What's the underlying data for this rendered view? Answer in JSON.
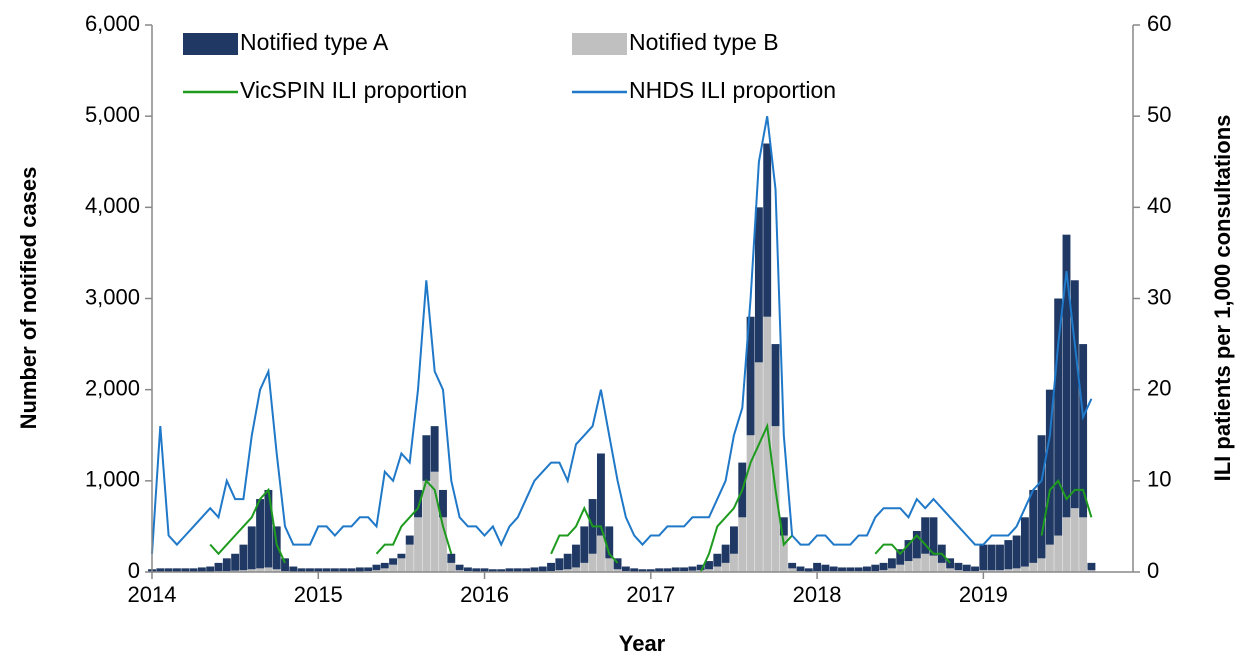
{
  "chart_data": {
    "type": "bar-line",
    "x_label": "Year",
    "y_label": "Number of notified cases",
    "y2_label": "ILI patients per 1,000 consultations",
    "x": [
      2014,
      2014.05,
      2014.1,
      2014.15,
      2014.2,
      2014.25,
      2014.3,
      2014.35,
      2014.4,
      2014.45,
      2014.5,
      2014.55,
      2014.6,
      2014.65,
      2014.7,
      2014.75,
      2014.8,
      2014.85,
      2014.9,
      2014.95,
      2015,
      2015.05,
      2015.1,
      2015.15,
      2015.2,
      2015.25,
      2015.3,
      2015.35,
      2015.4,
      2015.45,
      2015.5,
      2015.55,
      2015.6,
      2015.65,
      2015.7,
      2015.75,
      2015.8,
      2015.85,
      2015.9,
      2015.95,
      2016,
      2016.05,
      2016.1,
      2016.15,
      2016.2,
      2016.25,
      2016.3,
      2016.35,
      2016.4,
      2016.45,
      2016.5,
      2016.55,
      2016.6,
      2016.65,
      2016.7,
      2016.75,
      2016.8,
      2016.85,
      2016.9,
      2016.95,
      2017,
      2017.05,
      2017.1,
      2017.15,
      2017.2,
      2017.25,
      2017.3,
      2017.35,
      2017.4,
      2017.45,
      2017.5,
      2017.55,
      2017.6,
      2017.65,
      2017.7,
      2017.75,
      2017.8,
      2017.85,
      2017.9,
      2017.95,
      2018,
      2018.05,
      2018.1,
      2018.15,
      2018.2,
      2018.25,
      2018.3,
      2018.35,
      2018.4,
      2018.45,
      2018.5,
      2018.55,
      2018.6,
      2018.65,
      2018.7,
      2018.75,
      2018.8,
      2018.85,
      2018.9,
      2018.95,
      2019,
      2019.05,
      2019.1,
      2019.15,
      2019.2,
      2019.25,
      2019.3,
      2019.35,
      2019.4,
      2019.45,
      2019.5,
      2019.55,
      2019.6,
      2019.65
    ],
    "xlim": [
      2014,
      2019.9
    ],
    "xticks": [
      2014,
      2015,
      2016,
      2017,
      2018,
      2019
    ],
    "ylim": [
      0,
      6000
    ],
    "yticks": [
      0,
      {
        "value": 1000,
        "label": "1,000"
      },
      {
        "value": 2000,
        "label": "2,000"
      },
      {
        "value": 3000,
        "label": "3,000"
      },
      {
        "value": 4000,
        "label": "4,000"
      },
      {
        "value": 5000,
        "label": "5,000"
      },
      {
        "value": 6000,
        "label": "6,000"
      }
    ],
    "y2lim": [
      0,
      60
    ],
    "y2ticks": [
      0,
      10,
      20,
      30,
      40,
      50,
      60
    ],
    "series": [
      {
        "name": "Notified type A",
        "type": "bar",
        "color": "#1f3864",
        "values": [
          25,
          35,
          35,
          35,
          35,
          35,
          45,
          55,
          90,
          140,
          185,
          280,
          470,
          760,
          850,
          470,
          140,
          55,
          35,
          35,
          35,
          35,
          35,
          35,
          35,
          45,
          40,
          60,
          60,
          70,
          50,
          100,
          300,
          500,
          500,
          300,
          100,
          60,
          40,
          35,
          35,
          25,
          25,
          35,
          35,
          35,
          45,
          55,
          90,
          130,
          170,
          250,
          400,
          600,
          900,
          350,
          120,
          50,
          35,
          25,
          25,
          35,
          35,
          40,
          40,
          45,
          60,
          90,
          140,
          200,
          300,
          600,
          1300,
          1700,
          1900,
          900,
          200,
          60,
          50,
          35,
          90,
          70,
          50,
          40,
          40,
          40,
          50,
          70,
          80,
          110,
          170,
          230,
          300,
          400,
          420,
          200,
          110,
          80,
          70,
          50,
          280,
          280,
          280,
          320,
          360,
          540,
          800,
          1350,
          1700,
          2600,
          3100,
          2500,
          1900,
          80
        ]
      },
      {
        "name": "Notified type B",
        "type": "bar",
        "color": "#c0c0c0",
        "values": [
          5,
          5,
          5,
          5,
          5,
          5,
          5,
          5,
          10,
          10,
          15,
          20,
          30,
          40,
          50,
          30,
          10,
          5,
          5,
          5,
          5,
          5,
          5,
          5,
          5,
          5,
          10,
          20,
          40,
          80,
          150,
          300,
          600,
          1000,
          1100,
          600,
          100,
          20,
          10,
          5,
          5,
          5,
          5,
          5,
          5,
          5,
          5,
          5,
          10,
          20,
          30,
          50,
          100,
          200,
          400,
          150,
          30,
          10,
          5,
          5,
          5,
          5,
          5,
          10,
          10,
          15,
          20,
          30,
          60,
          100,
          200,
          600,
          1500,
          2300,
          2800,
          1600,
          400,
          40,
          10,
          5,
          10,
          10,
          10,
          10,
          10,
          10,
          10,
          10,
          20,
          40,
          80,
          120,
          150,
          200,
          180,
          100,
          40,
          20,
          10,
          10,
          20,
          20,
          20,
          30,
          40,
          60,
          100,
          150,
          300,
          400,
          600,
          700,
          600,
          20
        ]
      },
      {
        "name": "VicSPIN ILI proportion",
        "type": "line",
        "axis": "y2",
        "color": "#1e9b1e",
        "values": [
          null,
          null,
          null,
          null,
          null,
          null,
          null,
          3,
          2,
          3,
          4,
          5,
          6,
          8,
          9,
          3,
          1,
          null,
          null,
          null,
          null,
          null,
          null,
          null,
          null,
          null,
          null,
          2,
          3,
          3,
          5,
          6,
          7,
          10,
          9,
          5,
          2,
          null,
          null,
          null,
          null,
          null,
          null,
          null,
          null,
          null,
          null,
          null,
          2,
          4,
          4,
          5,
          7,
          5,
          5,
          2,
          1,
          null,
          null,
          null,
          null,
          null,
          null,
          null,
          null,
          null,
          0,
          2,
          5,
          6,
          7,
          9,
          12,
          14,
          16,
          9,
          3,
          4,
          null,
          null,
          null,
          null,
          null,
          null,
          null,
          null,
          null,
          2,
          3,
          3,
          2,
          3,
          4,
          3,
          2,
          2,
          1,
          null,
          null,
          null,
          null,
          null,
          null,
          null,
          null,
          null,
          null,
          4,
          9,
          10,
          8,
          9,
          9,
          6
        ]
      },
      {
        "name": "NHDS ILI proportion",
        "type": "line",
        "axis": "y2",
        "color": "#1f78c8",
        "values": [
          2,
          16,
          4,
          3,
          4,
          5,
          6,
          7,
          6,
          10,
          8,
          8,
          15,
          20,
          22,
          13,
          5,
          3,
          3,
          3,
          5,
          5,
          4,
          5,
          5,
          6,
          6,
          5,
          11,
          10,
          13,
          12,
          20,
          32,
          22,
          20,
          10,
          6,
          5,
          5,
          4,
          5,
          3,
          5,
          6,
          8,
          10,
          11,
          12,
          12,
          10,
          14,
          15,
          16,
          20,
          15,
          10,
          6,
          4,
          3,
          4,
          4,
          5,
          5,
          5,
          6,
          6,
          6,
          8,
          10,
          15,
          18,
          30,
          45,
          50,
          42,
          15,
          4,
          3,
          3,
          4,
          4,
          3,
          3,
          3,
          4,
          4,
          6,
          7,
          7,
          7,
          6,
          8,
          7,
          8,
          7,
          6,
          5,
          4,
          3,
          3,
          4,
          4,
          4,
          5,
          7,
          9,
          10,
          15,
          25,
          33,
          25,
          17,
          19
        ]
      }
    ]
  }
}
